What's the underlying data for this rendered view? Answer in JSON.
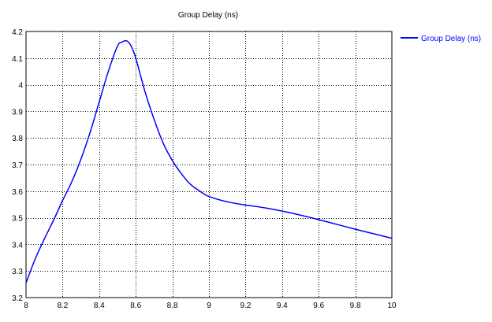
{
  "chart_data": {
    "type": "line",
    "title": "Group Delay (ns)",
    "xlabel": "",
    "ylabel": "",
    "xlim": [
      8,
      10
    ],
    "ylim": [
      3.2,
      4.2
    ],
    "x_ticks": [
      8,
      8.2,
      8.4,
      8.6,
      8.8,
      9,
      9.2,
      9.4,
      9.6,
      9.8,
      10
    ],
    "x_tick_labels": [
      "8",
      "8.2",
      "8.4",
      "8.6",
      "8.8",
      "9",
      "9.2",
      "9.4",
      "9.6",
      "9.8",
      "10"
    ],
    "y_ticks": [
      3.2,
      3.3,
      3.4,
      3.5,
      3.6,
      3.7,
      3.8,
      3.9,
      4.0,
      4.1,
      4.2
    ],
    "y_tick_labels": [
      "3.2",
      "3.3",
      "3.4",
      "3.5",
      "3.6",
      "3.7",
      "3.8",
      "3.9",
      "4",
      "4.1",
      "4.2"
    ],
    "grid": true,
    "legend_position": "top-right",
    "colors": {
      "series": "#0000ff",
      "grid": "#000000",
      "axes": "#000000",
      "text": "#000000"
    },
    "series": [
      {
        "name": "Group Delay (ns)",
        "x": [
          8.0,
          8.05,
          8.1,
          8.15,
          8.2,
          8.25,
          8.3,
          8.35,
          8.4,
          8.45,
          8.5,
          8.525,
          8.55,
          8.575,
          8.6,
          8.65,
          8.7,
          8.75,
          8.8,
          8.85,
          8.9,
          8.95,
          9.0,
          9.1,
          9.2,
          9.3,
          9.4,
          9.5,
          9.6,
          9.7,
          9.8,
          9.9,
          10.0
        ],
        "y": [
          3.255,
          3.345,
          3.42,
          3.49,
          3.565,
          3.635,
          3.72,
          3.82,
          3.935,
          4.05,
          4.145,
          4.16,
          4.165,
          4.145,
          4.1,
          3.975,
          3.87,
          3.78,
          3.715,
          3.665,
          3.625,
          3.6,
          3.58,
          3.56,
          3.548,
          3.538,
          3.525,
          3.51,
          3.493,
          3.475,
          3.457,
          3.44,
          3.423
        ]
      }
    ]
  }
}
